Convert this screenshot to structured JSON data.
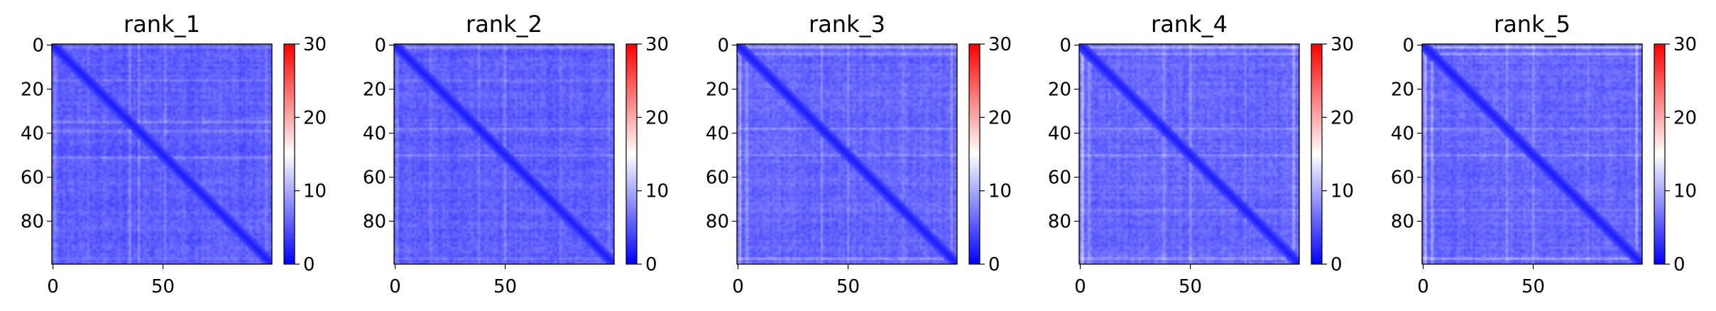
{
  "chart_data": [
    {
      "type": "heatmap",
      "title": "rank_1",
      "n": 100,
      "x_ticks": [
        0,
        50
      ],
      "y_ticks": [
        0,
        20,
        40,
        60,
        80
      ],
      "colorbar": {
        "range": [
          0,
          30
        ],
        "ticks": [
          0,
          10,
          20,
          30
        ],
        "colors": [
          "#0000ff",
          "#ffffff",
          "#ff0000"
        ]
      },
      "diag_value": 1.5,
      "offdiag_mean": 4.5,
      "high_rows": [
        {
          "index": 1,
          "value": 8
        },
        {
          "index": 16,
          "value": 7
        },
        {
          "index": 35,
          "value": 9
        },
        {
          "index": 39,
          "value": 8
        },
        {
          "index": 51,
          "value": 8
        },
        {
          "index": 76,
          "value": 6
        },
        {
          "index": 97,
          "value": 7
        }
      ]
    },
    {
      "type": "heatmap",
      "title": "rank_2",
      "n": 100,
      "x_ticks": [
        0,
        50
      ],
      "y_ticks": [
        0,
        20,
        40,
        60,
        80
      ],
      "colorbar": {
        "range": [
          0,
          30
        ],
        "ticks": [
          0,
          10,
          20,
          30
        ],
        "colors": [
          "#0000ff",
          "#ffffff",
          "#ff0000"
        ]
      },
      "diag_value": 1.5,
      "offdiag_mean": 4.5,
      "high_rows": [
        {
          "index": 1,
          "value": 9
        },
        {
          "index": 16,
          "value": 7
        },
        {
          "index": 38,
          "value": 8
        },
        {
          "index": 50,
          "value": 8
        },
        {
          "index": 75,
          "value": 6
        },
        {
          "index": 97,
          "value": 8
        }
      ]
    },
    {
      "type": "heatmap",
      "title": "rank_3",
      "n": 100,
      "x_ticks": [
        0,
        50
      ],
      "y_ticks": [
        0,
        20,
        40,
        60,
        80
      ],
      "colorbar": {
        "range": [
          0,
          30
        ],
        "ticks": [
          0,
          10,
          20,
          30
        ],
        "colors": [
          "#0000ff",
          "#ffffff",
          "#ff0000"
        ]
      },
      "diag_value": 1.5,
      "offdiag_mean": 5,
      "high_rows": [
        {
          "index": 1,
          "value": 12
        },
        {
          "index": 4,
          "value": 9
        },
        {
          "index": 38,
          "value": 9
        },
        {
          "index": 50,
          "value": 9
        },
        {
          "index": 75,
          "value": 7
        },
        {
          "index": 97,
          "value": 10
        }
      ]
    },
    {
      "type": "heatmap",
      "title": "rank_4",
      "n": 100,
      "x_ticks": [
        0,
        50
      ],
      "y_ticks": [
        0,
        20,
        40,
        60,
        80
      ],
      "colorbar": {
        "range": [
          0,
          30
        ],
        "ticks": [
          0,
          10,
          20,
          30
        ],
        "colors": [
          "#0000ff",
          "#ffffff",
          "#ff0000"
        ]
      },
      "diag_value": 1.5,
      "offdiag_mean": 5,
      "high_rows": [
        {
          "index": 1,
          "value": 14
        },
        {
          "index": 4,
          "value": 10
        },
        {
          "index": 38,
          "value": 9
        },
        {
          "index": 50,
          "value": 9
        },
        {
          "index": 75,
          "value": 7
        },
        {
          "index": 97,
          "value": 11
        }
      ]
    },
    {
      "type": "heatmap",
      "title": "rank_5",
      "n": 100,
      "x_ticks": [
        0,
        50
      ],
      "y_ticks": [
        0,
        20,
        40,
        60,
        80
      ],
      "colorbar": {
        "range": [
          0,
          30
        ],
        "ticks": [
          0,
          10,
          20,
          30
        ],
        "colors": [
          "#0000ff",
          "#ffffff",
          "#ff0000"
        ]
      },
      "diag_value": 1.5,
      "offdiag_mean": 5,
      "high_rows": [
        {
          "index": 1,
          "value": 14
        },
        {
          "index": 4,
          "value": 11
        },
        {
          "index": 38,
          "value": 9
        },
        {
          "index": 50,
          "value": 9
        },
        {
          "index": 75,
          "value": 7
        },
        {
          "index": 97,
          "value": 11
        }
      ]
    }
  ]
}
